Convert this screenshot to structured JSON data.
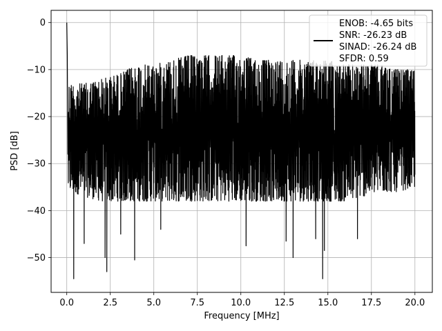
{
  "chart_data": {
    "type": "line",
    "xlabel": "Frequency [MHz]",
    "ylabel": "PSD [dB]",
    "xlim": [
      -0.9,
      21.0
    ],
    "ylim": [
      -57.4,
      2.6
    ],
    "xticks": [
      0.0,
      2.5,
      5.0,
      7.5,
      10.0,
      12.5,
      15.0,
      17.5,
      20.0
    ],
    "xtick_labels": [
      "0.0",
      "2.5",
      "5.0",
      "7.5",
      "10.0",
      "12.5",
      "15.0",
      "17.5",
      "20.0"
    ],
    "yticks": [
      0,
      -10,
      -20,
      -30,
      -40,
      -50
    ],
    "ytick_labels": [
      "0",
      "−10",
      "−20",
      "−30",
      "−40",
      "−50"
    ],
    "grid": true,
    "legend_position": "top-right",
    "series_color": "#000000",
    "legend_lines": [
      "ENOB: -4.65 bits",
      "SNR: -26.23 dB",
      "SINAD: -26.24 dB",
      "SFDR: 0.59"
    ],
    "series": {
      "x_start": 0.0,
      "x_end": 20.0,
      "peak": {
        "x": 0.0,
        "y": 0.0
      },
      "upper_envelope": [
        [
          0.3,
          -13
        ],
        [
          1.0,
          -13
        ],
        [
          2.0,
          -12
        ],
        [
          3.0,
          -11
        ],
        [
          4.0,
          -9
        ],
        [
          5.0,
          -9
        ],
        [
          6.0,
          -8
        ],
        [
          7.0,
          -7
        ],
        [
          8.0,
          -7
        ],
        [
          9.0,
          -7
        ],
        [
          10.0,
          -7
        ],
        [
          11.0,
          -8
        ],
        [
          12.0,
          -8
        ],
        [
          13.0,
          -8
        ],
        [
          14.0,
          -8
        ],
        [
          15.0,
          -8
        ],
        [
          16.0,
          -9
        ],
        [
          17.0,
          -9
        ],
        [
          18.0,
          -9
        ],
        [
          19.0,
          -10
        ],
        [
          20.0,
          -10
        ]
      ],
      "lower_envelope": [
        [
          0.3,
          -36
        ],
        [
          1.0,
          -37
        ],
        [
          2.0,
          -38
        ],
        [
          3.0,
          -38
        ],
        [
          4.0,
          -38
        ],
        [
          5.0,
          -38
        ],
        [
          6.0,
          -38
        ],
        [
          7.0,
          -38
        ],
        [
          8.0,
          -38
        ],
        [
          9.0,
          -38
        ],
        [
          10.0,
          -38
        ],
        [
          11.0,
          -38
        ],
        [
          12.0,
          -38
        ],
        [
          13.0,
          -38
        ],
        [
          14.0,
          -38
        ],
        [
          15.0,
          -38
        ],
        [
          16.0,
          -38
        ],
        [
          17.0,
          -37
        ],
        [
          18.0,
          -36
        ],
        [
          19.0,
          -36
        ],
        [
          20.0,
          -35
        ]
      ],
      "deep_dips": [
        [
          0.4,
          -54.5
        ],
        [
          1.0,
          -47
        ],
        [
          2.2,
          -50
        ],
        [
          2.3,
          -53
        ],
        [
          3.1,
          -45
        ],
        [
          3.9,
          -50.5
        ],
        [
          5.4,
          -44
        ],
        [
          10.3,
          -47.5
        ],
        [
          12.6,
          -46.5
        ],
        [
          13.0,
          -50
        ],
        [
          14.3,
          -46
        ],
        [
          14.7,
          -54.5
        ],
        [
          14.8,
          -48.5
        ],
        [
          16.7,
          -46
        ]
      ]
    }
  }
}
